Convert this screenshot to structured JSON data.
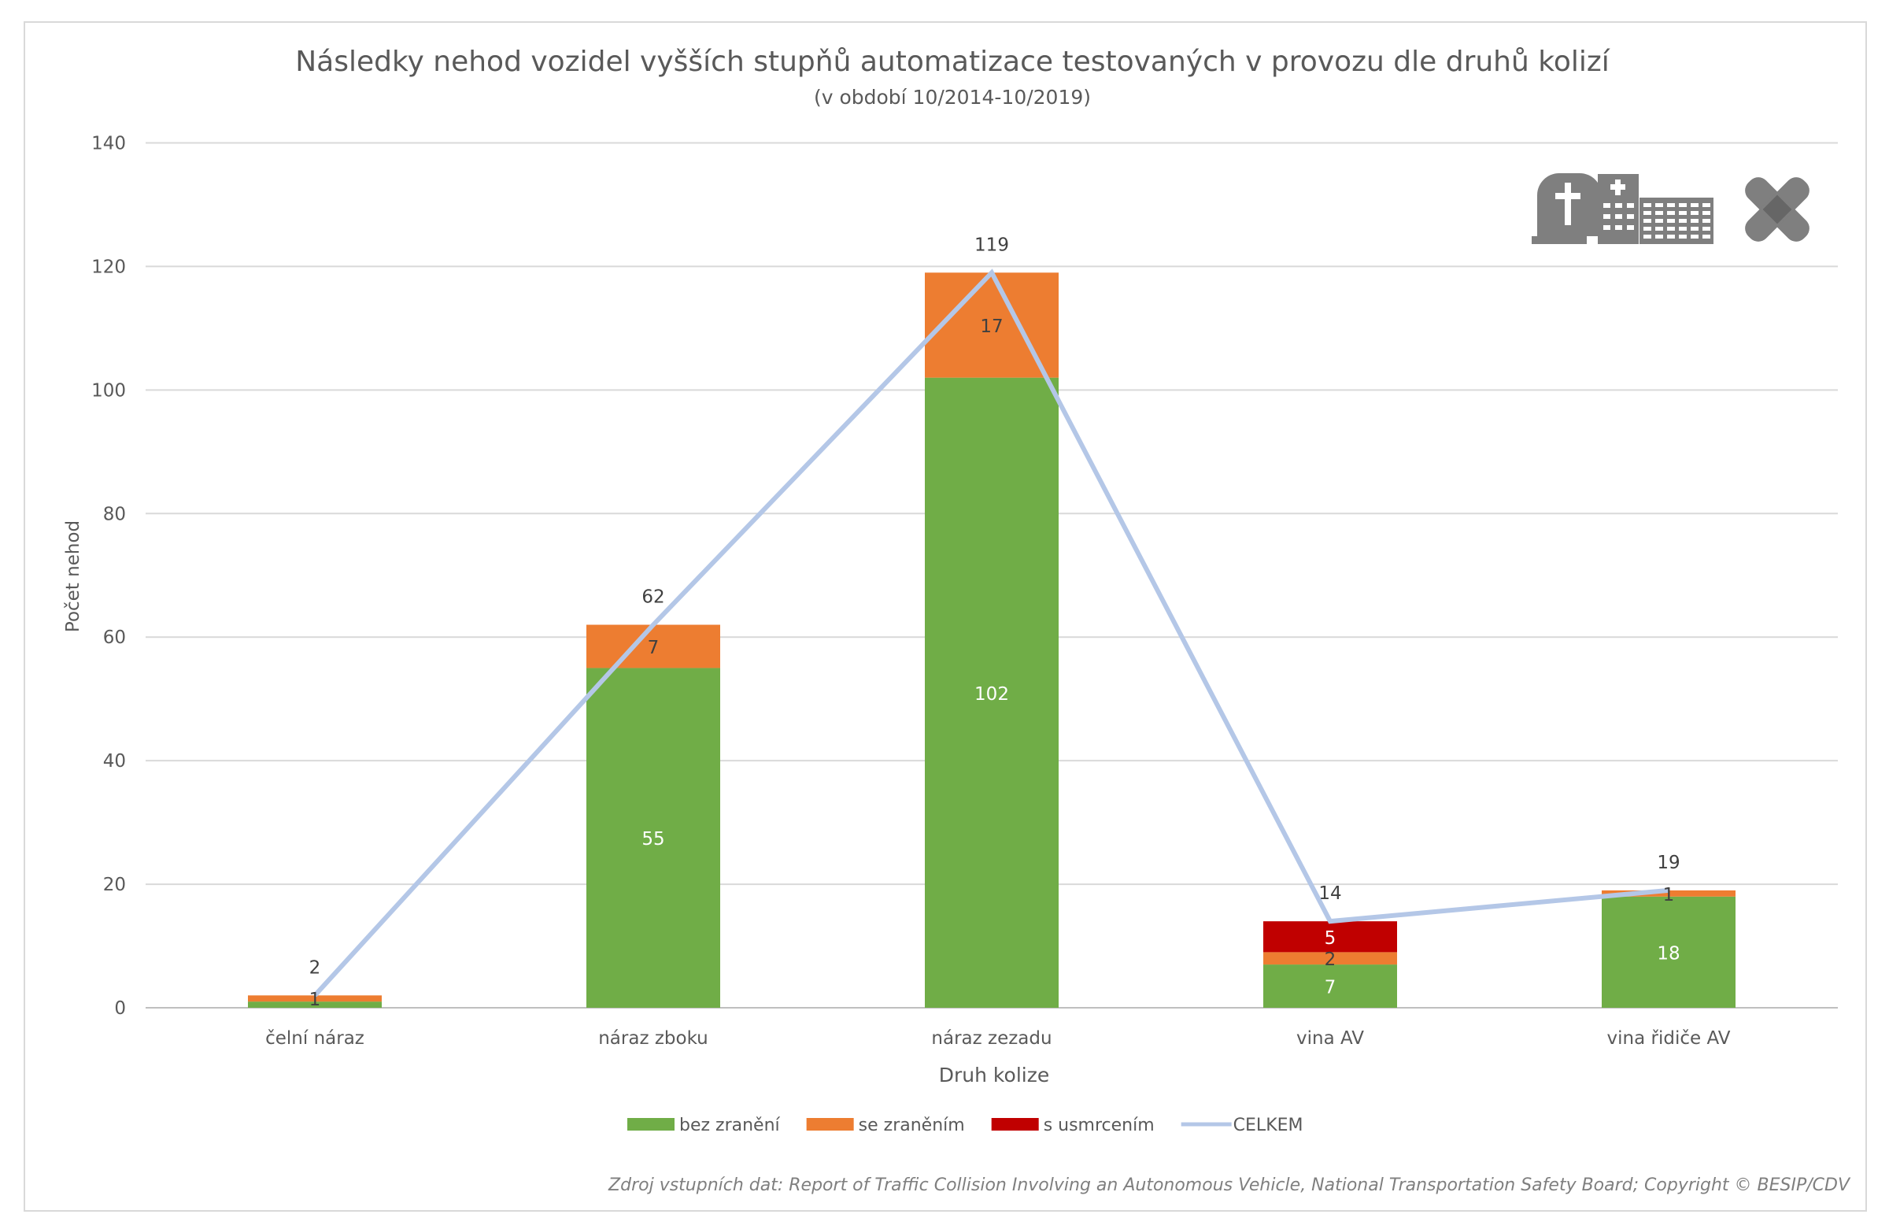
{
  "chart_data": {
    "type": "bar",
    "stacked": true,
    "title": "Následky nehod vozidel vyšších stupňů automatizace testovaných v provozu dle druhů kolizí",
    "subtitle": "(v období 10/2014-10/2019)",
    "xlabel": "Druh kolize",
    "ylabel": "Počet nehod",
    "ylim": [
      0,
      140
    ],
    "yticks": [
      "0",
      "20",
      "40",
      "60",
      "80",
      "100",
      "120",
      "140"
    ],
    "grid": true,
    "legend_position": "bottom",
    "categories": [
      "čelní náraz",
      "náraz zboku",
      "náraz zezadu",
      "vina AV",
      "vina řidiče AV"
    ],
    "series": [
      {
        "name": "bez zranění",
        "type": "bar",
        "color": "#70AD47",
        "values": [
          1,
          55,
          102,
          7,
          18
        ],
        "labels": [
          "",
          "55",
          "102",
          "7",
          "18"
        ]
      },
      {
        "name": "se zraněním",
        "type": "bar",
        "color": "#ED7D31",
        "values": [
          1,
          7,
          17,
          2,
          1
        ],
        "labels": [
          "1",
          "7",
          "17",
          "2",
          "1"
        ]
      },
      {
        "name": "s usmrcením",
        "type": "bar",
        "color": "#C00000",
        "values": [
          0,
          0,
          0,
          5,
          0
        ],
        "labels": [
          "",
          "",
          "",
          "5",
          ""
        ]
      },
      {
        "name": "CELKEM",
        "type": "line",
        "color": "#B4C7E7",
        "values": [
          2,
          62,
          119,
          14,
          19
        ],
        "labels": [
          "2",
          "62",
          "119",
          "14",
          "19"
        ]
      }
    ],
    "source": "Zdroj vstupních dat: Report of Traffic Collision Involving an Autonomous Vehicle, National Transportation Safety Board; Copyright © BESIP/CDV",
    "icons": [
      "gravestone-icon",
      "hospital-icon",
      "bandage-icon"
    ]
  }
}
